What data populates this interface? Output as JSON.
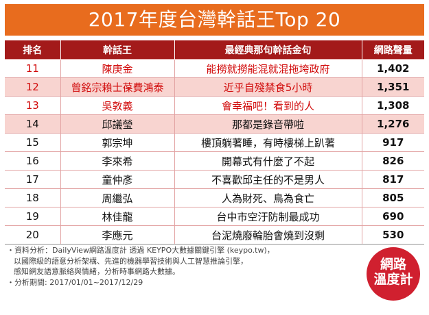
{
  "title": "2017年度台灣幹話王Top 20",
  "headers": {
    "rank": "排名",
    "name": "幹話王",
    "quote": "最經典那句幹話金句",
    "volume": "網路聲量"
  },
  "chart_data": {
    "type": "table",
    "columns": [
      "排名",
      "幹話王",
      "最經典那句幹話金句",
      "網路聲量"
    ],
    "rows": [
      {
        "rank": "11",
        "name": "陳庚金",
        "quote": "能撈就撈能混就混拖垮政府",
        "volume": "1,402"
      },
      {
        "rank": "12",
        "name": "曾銘宗賴士葆費鴻泰",
        "quote": "近乎自殘禁食5小時",
        "volume": "1,351"
      },
      {
        "rank": "13",
        "name": "吳敦義",
        "quote": "會幸福吧！看到的人",
        "volume": "1,308"
      },
      {
        "rank": "14",
        "name": "邱議瑩",
        "quote": "那都是錄音帶啦",
        "volume": "1,276"
      },
      {
        "rank": "15",
        "name": "郭宗坤",
        "quote": "樓頂躺著睡，有時樓梯上趴著",
        "volume": "917"
      },
      {
        "rank": "16",
        "name": "李來希",
        "quote": "開幕式有什麼了不起",
        "volume": "826"
      },
      {
        "rank": "17",
        "name": "童仲彥",
        "quote": "不喜歡邱主任的不是男人",
        "volume": "817"
      },
      {
        "rank": "18",
        "name": "周繼弘",
        "quote": "人為財死、鳥為食亡",
        "volume": "805"
      },
      {
        "rank": "19",
        "name": "林佳龍",
        "quote": "台中市空汙防制最成功",
        "volume": "690"
      },
      {
        "rank": "20",
        "name": "李應元",
        "quote": "台泥燒廢輪胎會燒到沒剩",
        "volume": "530"
      }
    ]
  },
  "footnote": [
    "・資料分析：DailyView網路溫度計 透過 KEYPO大數據關鍵引擎 (keypo.tw)，",
    "以國際級的語意分析架構、先進的機器學習技術與人工智慧推論引擎，",
    "感知網友語意脈絡與情緒，分析時事網路大數據。",
    "・分析期間: 2017/01/01~2017/12/29"
  ],
  "logo": {
    "line1": "網路",
    "line2": "溫度計"
  },
  "colors": {
    "title_bg": "#e86c1e",
    "header_bg": "#a31a1a",
    "highlight_text": "#d10a0a",
    "row_pink": "#f8d4d0",
    "logo_bg": "#d0202f"
  }
}
